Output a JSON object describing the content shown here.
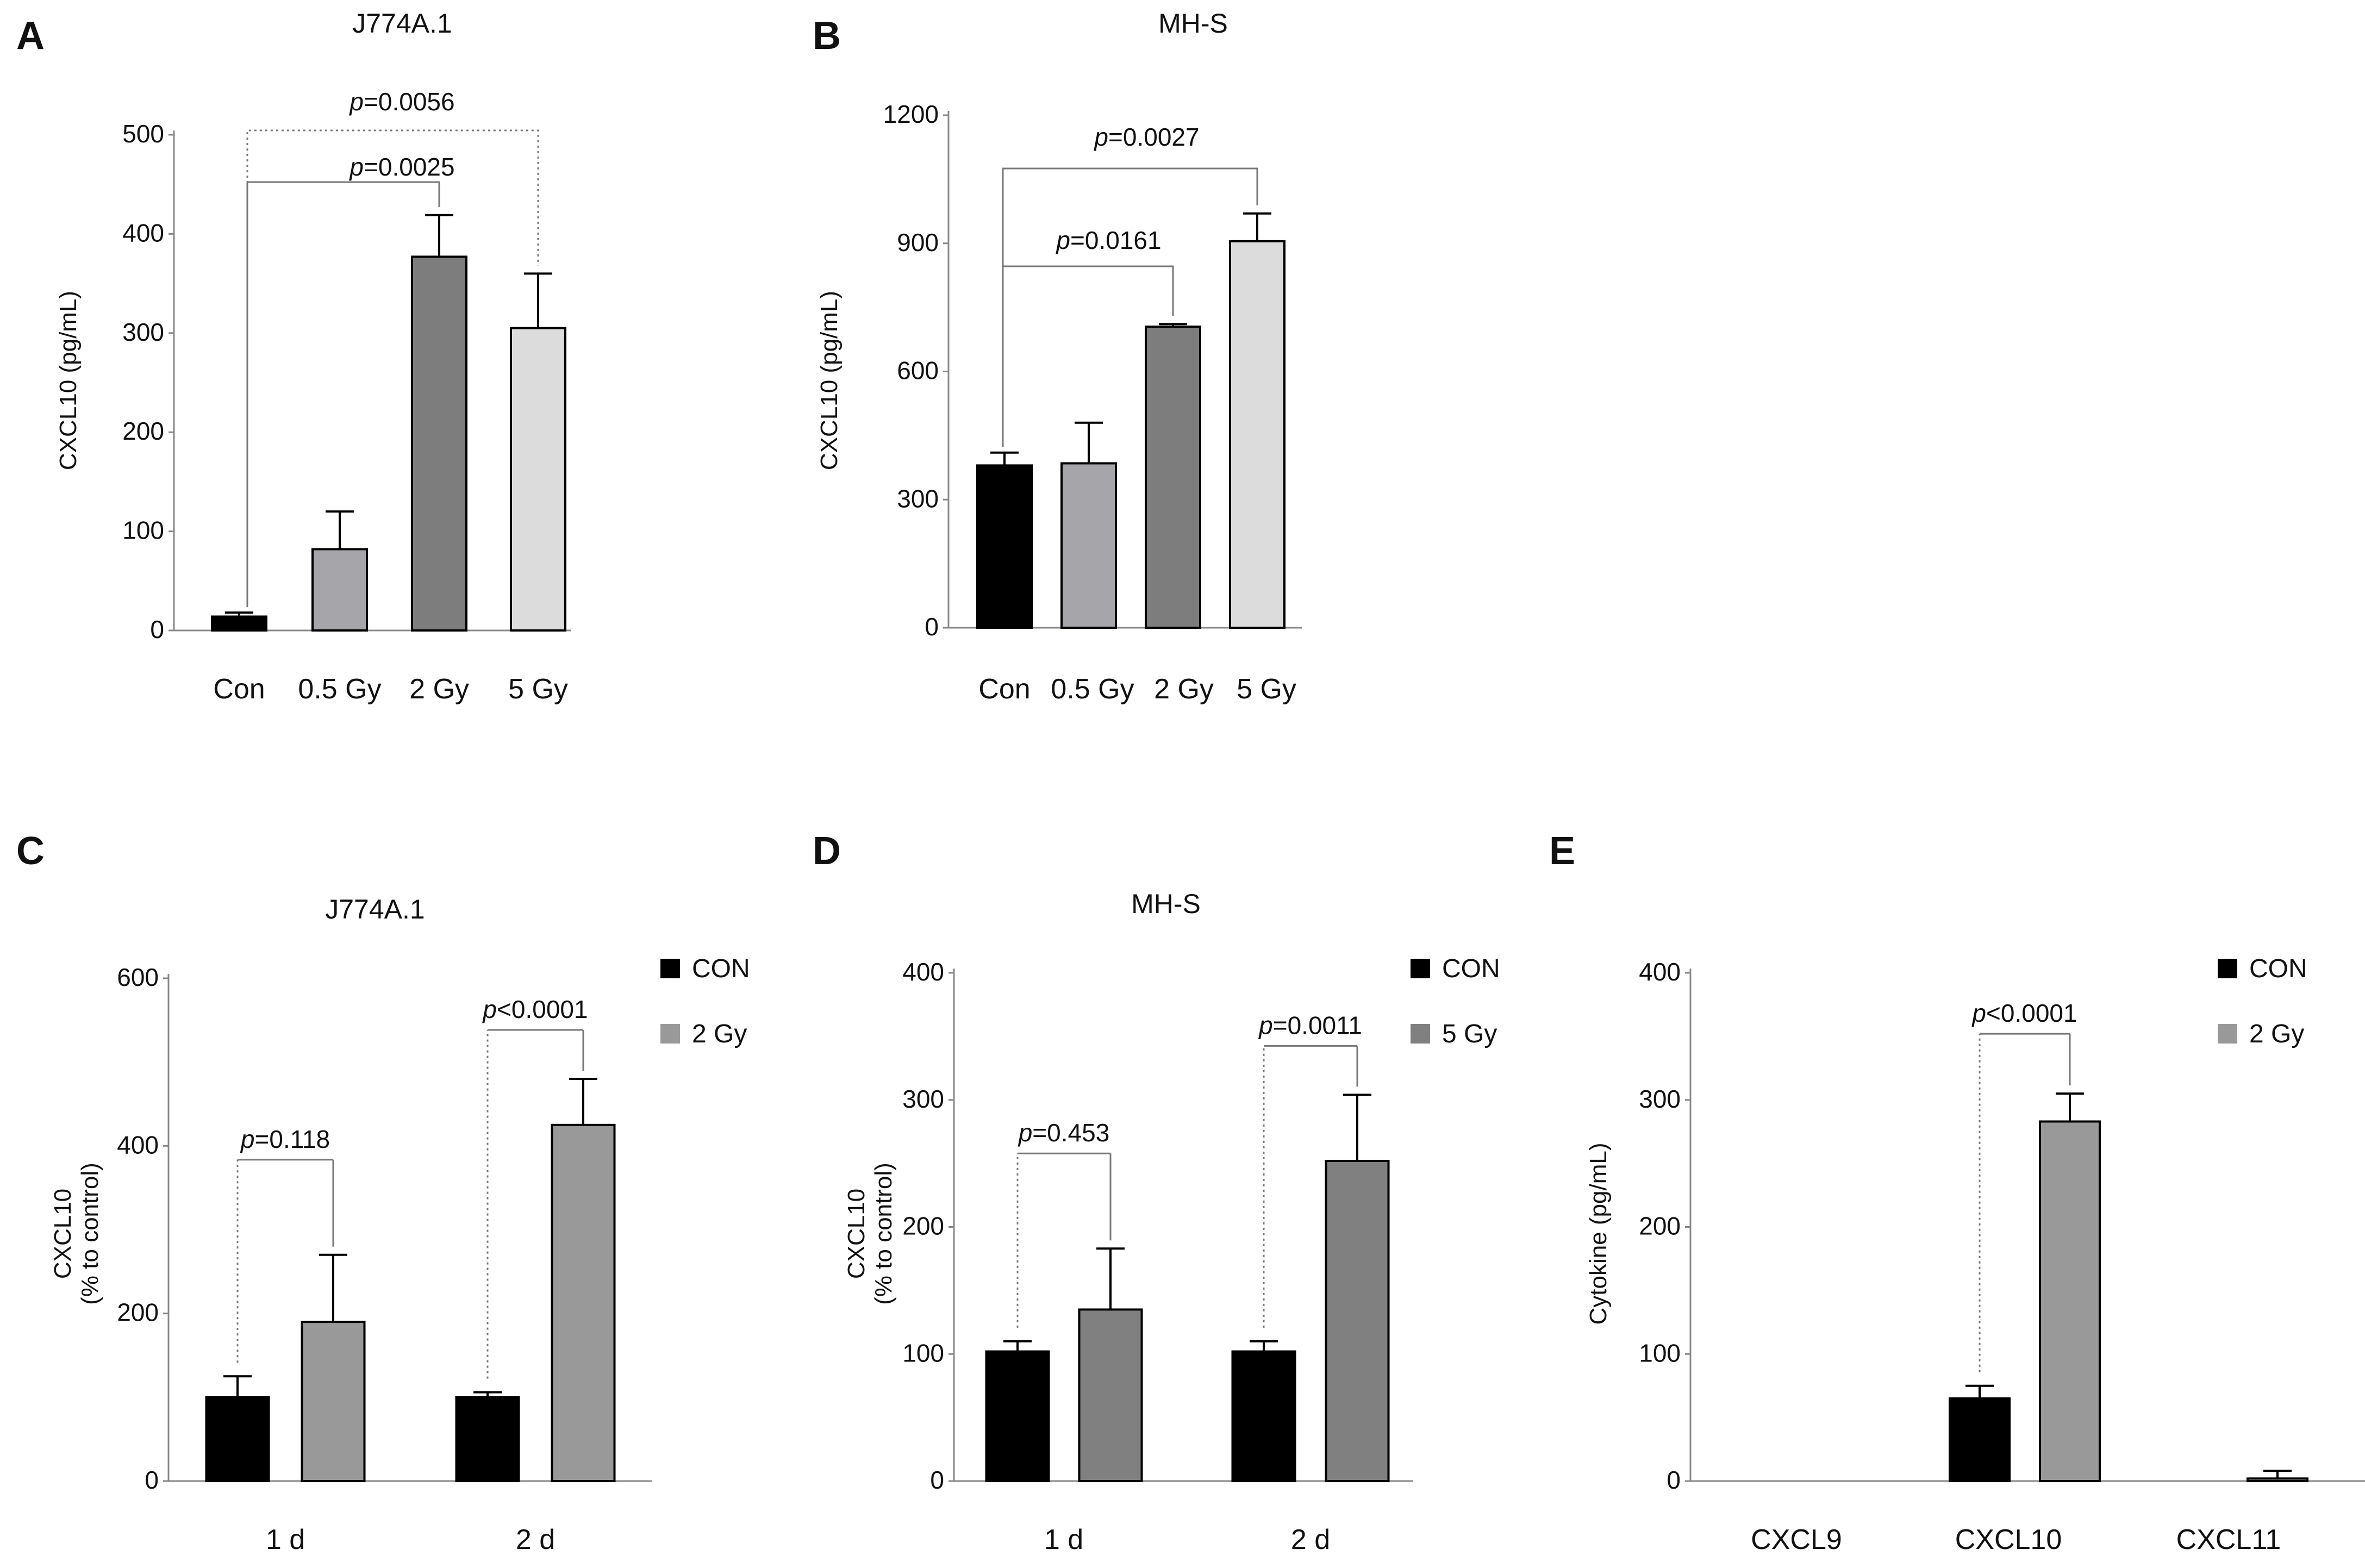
{
  "colors": {
    "black": "#000000",
    "lightgray": "#a5a5aa",
    "darkgray": "#7d7d7d",
    "palegray": "#dcdcdc",
    "gray": "#999999",
    "midgray": "#808080"
  },
  "chart_data": [
    {
      "id": "A",
      "type": "bar",
      "letter": "A",
      "title": "J774A.1",
      "ylabel": "CXCL10 (pg/mL)",
      "ylim": [
        0,
        500
      ],
      "yticks": [
        0,
        100,
        200,
        300,
        400,
        500
      ],
      "categories": [
        "Con",
        "0.5 Gy",
        "2 Gy",
        "5 Gy"
      ],
      "values": [
        14,
        82,
        377,
        305
      ],
      "errors": [
        4,
        38,
        42,
        55
      ],
      "bar_colors": [
        "black",
        "lightgray",
        "darkgray",
        "palegray"
      ],
      "annotations": [
        {
          "text": "p=0.0025",
          "from": 0,
          "to": 2,
          "style": "solid"
        },
        {
          "text": "p=0.0056",
          "from": 0,
          "to": 3,
          "style": "dotted"
        }
      ]
    },
    {
      "id": "B",
      "type": "bar",
      "letter": "B",
      "title": "MH-S",
      "ylabel": "CXCL10 (pg/mL)",
      "ylim": [
        0,
        1200
      ],
      "yticks": [
        0,
        300,
        600,
        900,
        1200
      ],
      "categories": [
        "Con",
        "0.5 Gy",
        "2 Gy",
        "5 Gy"
      ],
      "values": [
        380,
        385,
        705,
        905
      ],
      "errors": [
        30,
        95,
        6,
        65
      ],
      "bar_colors": [
        "black",
        "lightgray",
        "darkgray",
        "palegray"
      ],
      "annotations": [
        {
          "text": "p=0.0161",
          "from": 0,
          "to": 2,
          "style": "solid"
        },
        {
          "text": "p=0.0027",
          "from": 0,
          "to": 3,
          "style": "solid"
        }
      ]
    },
    {
      "id": "C",
      "type": "bar",
      "letter": "C",
      "title": "J774A.1",
      "ylabel_lines": [
        "CXCL10",
        "(% to control)"
      ],
      "ylim": [
        0,
        600
      ],
      "yticks": [
        0,
        200,
        400,
        600
      ],
      "categories": [
        "1 d",
        "2 d"
      ],
      "series": [
        {
          "name": "CON",
          "values": [
            100,
            100
          ],
          "errors": [
            25,
            6
          ],
          "color": "black"
        },
        {
          "name": "2 Gy",
          "values": [
            190,
            425
          ],
          "errors": [
            80,
            55
          ],
          "color": "gray"
        }
      ],
      "annotations": [
        {
          "text": "p=0.118",
          "group": 0
        },
        {
          "text": "p<0.0001",
          "group": 1
        }
      ]
    },
    {
      "id": "D",
      "type": "bar",
      "letter": "D",
      "title": "MH-S",
      "ylabel_lines": [
        "CXCL10",
        "(% to control)"
      ],
      "ylim": [
        0,
        400
      ],
      "yticks": [
        0,
        100,
        200,
        300,
        400
      ],
      "categories": [
        "1 d",
        "2 d"
      ],
      "series": [
        {
          "name": "CON",
          "values": [
            102,
            102
          ],
          "errors": [
            8,
            8
          ],
          "color": "black"
        },
        {
          "name": "5 Gy",
          "values": [
            135,
            252
          ],
          "errors": [
            48,
            52
          ],
          "color": "midgray"
        }
      ],
      "annotations": [
        {
          "text": "p=0.453",
          "group": 0
        },
        {
          "text": "p=0.0011",
          "group": 1
        }
      ]
    },
    {
      "id": "E",
      "type": "bar",
      "letter": "E",
      "title": "",
      "ylabel": "Cytokine (pg/mL)",
      "ylim": [
        0,
        400
      ],
      "yticks": [
        0,
        100,
        200,
        300,
        400
      ],
      "categories": [
        "CXCL9",
        "CXCL10",
        "CXCL11"
      ],
      "series": [
        {
          "name": "CON",
          "values": [
            0,
            65,
            0
          ],
          "errors": [
            0,
            10,
            0
          ],
          "color": "black"
        },
        {
          "name": "2 Gy",
          "values": [
            0,
            283,
            2
          ],
          "errors": [
            0,
            22,
            6
          ],
          "color": "gray"
        }
      ],
      "annotations": [
        {
          "text": "p<0.0001",
          "group": 1
        }
      ]
    }
  ]
}
